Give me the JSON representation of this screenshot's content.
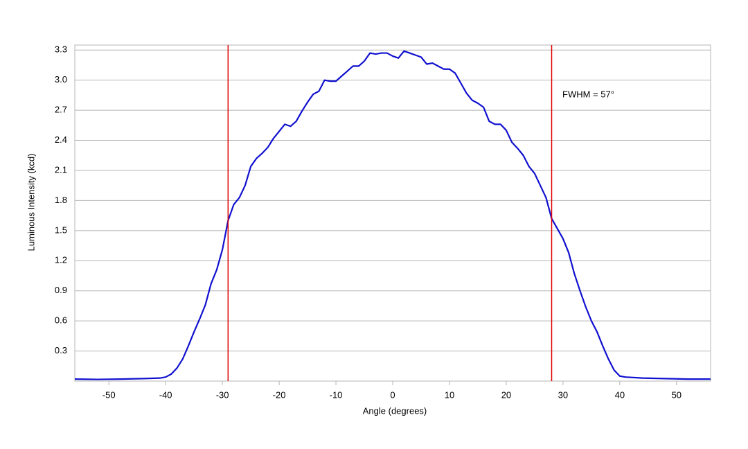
{
  "chart_data": {
    "type": "line",
    "xlabel": "Angle (degrees)",
    "ylabel": "Luminous Intensity (kcd)",
    "annotation": "FWHM = 57°",
    "x": [
      -56,
      -52,
      -48,
      -44,
      -41,
      -40,
      -39,
      -38,
      -37,
      -36,
      -35,
      -34,
      -33,
      -32,
      -31,
      -30,
      -29,
      -28,
      -27,
      -26,
      -25,
      -24,
      -23,
      -22,
      -21,
      -20,
      -19,
      -18,
      -17,
      -16,
      -15,
      -14,
      -13,
      -12,
      -11,
      -10,
      -9,
      -8,
      -7,
      -6,
      -5,
      -4,
      -3,
      -2,
      -1,
      0,
      1,
      2,
      3,
      4,
      5,
      6,
      7,
      8,
      9,
      10,
      11,
      12,
      13,
      14,
      15,
      16,
      17,
      18,
      19,
      20,
      21,
      22,
      23,
      24,
      25,
      26,
      27,
      28,
      29,
      30,
      31,
      32,
      33,
      34,
      35,
      36,
      37,
      38,
      39,
      40,
      41,
      44,
      48,
      52,
      56
    ],
    "series": [
      {
        "color": "#1010d0",
        "values": [
          0.02,
          0.017,
          0.02,
          0.025,
          0.03,
          0.04,
          0.07,
          0.13,
          0.22,
          0.35,
          0.49,
          0.62,
          0.76,
          0.97,
          1.11,
          1.31,
          1.6,
          1.76,
          1.83,
          1.95,
          2.14,
          2.22,
          2.27,
          2.33,
          2.42,
          2.49,
          2.56,
          2.54,
          2.59,
          2.69,
          2.78,
          2.86,
          2.89,
          3.0,
          2.99,
          2.99,
          3.04,
          3.09,
          3.14,
          3.14,
          3.19,
          3.27,
          3.26,
          3.27,
          3.27,
          3.24,
          3.22,
          3.29,
          3.27,
          3.25,
          3.23,
          3.16,
          3.17,
          3.14,
          3.11,
          3.11,
          3.07,
          2.97,
          2.87,
          2.8,
          2.77,
          2.73,
          2.59,
          2.56,
          2.56,
          2.5,
          2.38,
          2.32,
          2.25,
          2.14,
          2.07,
          1.95,
          1.83,
          1.62,
          1.52,
          1.42,
          1.28,
          1.07,
          0.9,
          0.74,
          0.6,
          0.49,
          0.35,
          0.22,
          0.11,
          0.05,
          0.04,
          0.03,
          0.025,
          0.02,
          0.02
        ]
      }
    ],
    "reference_lines": {
      "color": "#e00000",
      "x": [
        -29,
        28
      ]
    },
    "xlim": [
      -56,
      56
    ],
    "ylim": [
      0,
      3.35
    ],
    "xticks": [
      -50,
      -40,
      -30,
      -20,
      -10,
      0,
      10,
      20,
      30,
      40,
      50
    ],
    "yticks": [
      0.3,
      0.6,
      0.9,
      1.2,
      1.5,
      1.8,
      2.1,
      2.4,
      2.7,
      {
        "value": 3,
        "label": "3.0"
      },
      3.3
    ],
    "grid": true
  }
}
